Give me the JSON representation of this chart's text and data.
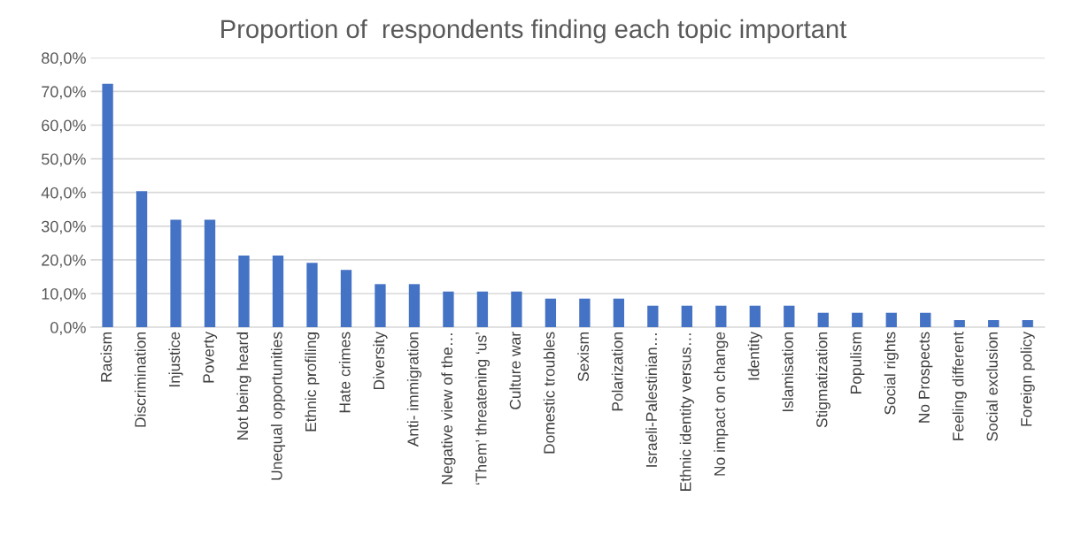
{
  "chart_data": {
    "type": "bar",
    "title": "Proportion of  respondents finding each topic important",
    "categories": [
      "Racism",
      "Discrimination",
      "Injustice",
      "Poverty",
      "Not being heard",
      "Unequal opportunities",
      "Ethnic profiling",
      "Hate crimes",
      "Diversity",
      "Anti- immigration",
      "Negative view of the…",
      "‘Them’ threatening ‘us’",
      "Culture war",
      "Domestic troubles",
      "Sexism",
      "Polarization",
      "Israeli-Palestinian…",
      "Ethnic identity versus…",
      "No impact on change",
      "Identity",
      "Islamisation",
      "Stigmatization",
      "Populism",
      "Social rights",
      "No Prospects",
      "Feeling different",
      "Social exclusion",
      "Foreign policy"
    ],
    "values": [
      72.3,
      40.4,
      31.9,
      31.9,
      21.3,
      21.3,
      19.1,
      17.0,
      12.8,
      12.8,
      10.6,
      10.6,
      10.6,
      8.5,
      8.5,
      8.5,
      6.4,
      6.4,
      6.4,
      6.4,
      6.4,
      4.3,
      4.3,
      4.3,
      4.3,
      2.1,
      2.1,
      2.1
    ],
    "color": "#4472c4",
    "ylim": [
      0,
      80
    ],
    "yticks": [
      {
        "value": 0,
        "label": "0,0%"
      },
      {
        "value": 10,
        "label": "10,0%"
      },
      {
        "value": 20,
        "label": "20,0%"
      },
      {
        "value": 30,
        "label": "30,0%"
      },
      {
        "value": 40,
        "label": "40,0%"
      },
      {
        "value": 50,
        "label": "50,0%"
      },
      {
        "value": 60,
        "label": "60,0%"
      },
      {
        "value": 70,
        "label": "70,0%"
      },
      {
        "value": 80,
        "label": "80,0%"
      }
    ],
    "grid": "y"
  }
}
